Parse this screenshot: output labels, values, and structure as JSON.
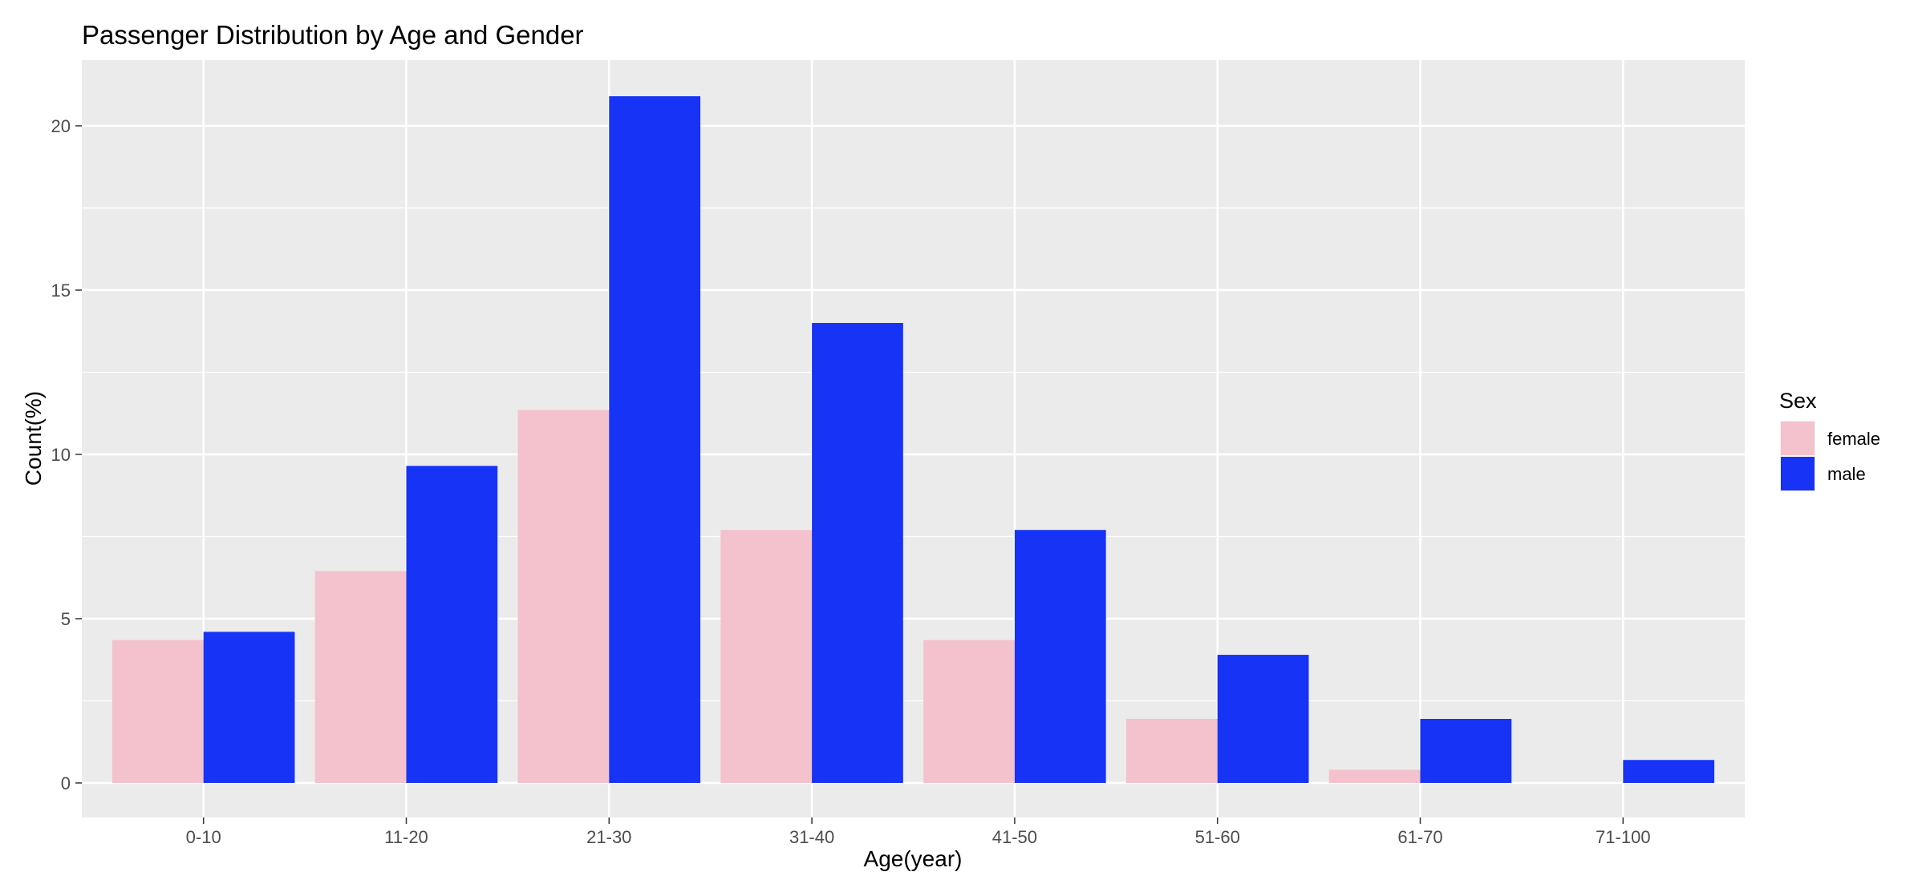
{
  "chart_data": {
    "type": "bar",
    "title": "Passenger Distribution by Age and Gender",
    "xlabel": "Age(year)",
    "ylabel": "Count(%)",
    "categories": [
      "0-10",
      "11-20",
      "21-30",
      "31-40",
      "41-50",
      "51-60",
      "61-70",
      "71-100"
    ],
    "series": [
      {
        "name": "female",
        "color": "#F4C2CC",
        "values": [
          4.35,
          6.45,
          11.35,
          7.7,
          4.35,
          1.95,
          0.4,
          0
        ]
      },
      {
        "name": "male",
        "color": "#1733F5",
        "values": [
          4.6,
          9.65,
          20.9,
          14.0,
          7.7,
          3.9,
          1.95,
          0.7
        ]
      }
    ],
    "ylim": [
      -1.05,
      22.0
    ],
    "yticks": [
      0,
      5,
      10,
      15,
      20
    ],
    "ytick_labels": [
      "0",
      "5",
      "10",
      "15",
      "20"
    ],
    "grid": true,
    "panel_background": "#EBEBEB",
    "legend": {
      "title": "Sex",
      "position": "right",
      "entries": [
        "female",
        "male"
      ]
    }
  }
}
